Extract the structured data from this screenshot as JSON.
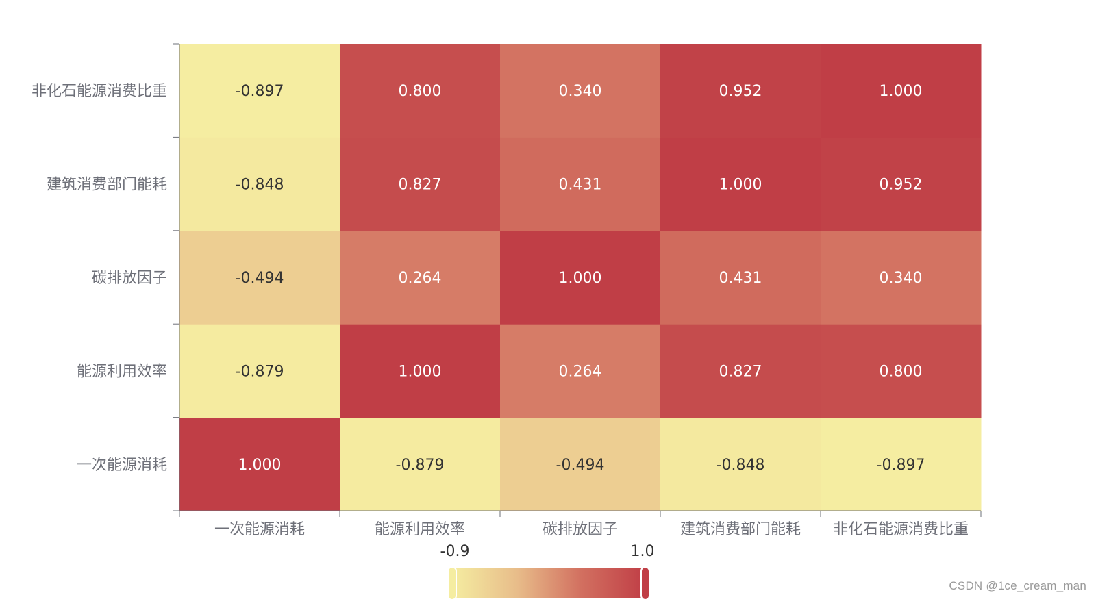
{
  "chart_data": {
    "type": "heatmap",
    "title": "",
    "x_categories": [
      "一次能源消耗",
      "能源利用效率",
      "碳排放因子",
      "建筑消费部门能耗",
      "非化石能源消费比重"
    ],
    "y_categories": [
      "一次能源消耗",
      "能源利用效率",
      "碳排放因子",
      "建筑消费部门能耗",
      "非化石能源消费比重"
    ],
    "values": [
      [
        1.0,
        -0.879,
        -0.494,
        -0.848,
        -0.897
      ],
      [
        -0.879,
        1.0,
        0.264,
        0.827,
        0.8
      ],
      [
        -0.494,
        0.264,
        1.0,
        0.431,
        0.34
      ],
      [
        -0.848,
        0.827,
        0.431,
        1.0,
        0.952
      ],
      [
        -0.897,
        0.8,
        0.34,
        0.952,
        1.0
      ]
    ],
    "value_format": "3 decimals",
    "visual_map": {
      "min": -0.9,
      "max": 1.0,
      "min_label": "-0.9",
      "max_label": "1.0",
      "orientation": "horizontal",
      "placement": "bottom-center",
      "colors": [
        "#f5eda1",
        "#e8bd8a",
        "#d27060",
        "#c03e46"
      ]
    },
    "grid": false,
    "legend": "none"
  },
  "watermark": "CSDN @1ce_cream_man"
}
